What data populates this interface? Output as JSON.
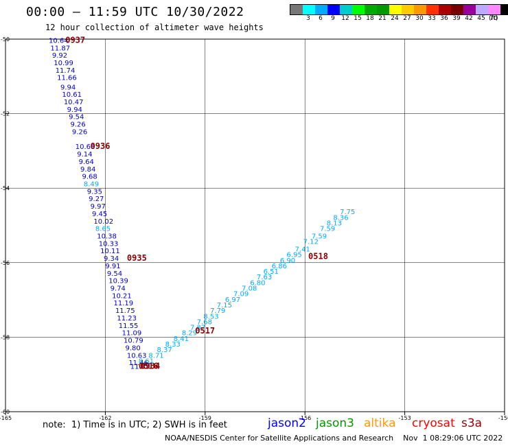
{
  "header": {
    "title": "00:00 – 11:59 UTC 10/30/2022",
    "subtitle": "12 hour collection of altimeter wave heights"
  },
  "colorbar": {
    "colors": [
      "#777777",
      "#00ffff",
      "#00aaff",
      "#0000ff",
      "#00cccc",
      "#00ff00",
      "#00aa00",
      "#009900",
      "#ffff00",
      "#ffcc00",
      "#ff9900",
      "#ff3300",
      "#aa0000",
      "#770000",
      "#990099",
      "#bbaaff",
      "#ff88ff",
      "#000000"
    ],
    "labels": [
      "",
      "3",
      "6",
      "9",
      "12",
      "15",
      "18",
      "21",
      "24",
      "27",
      "30",
      "33",
      "36",
      "39",
      "42",
      "45",
      "70",
      ""
    ],
    "unit": "(ft)"
  },
  "footer": {
    "note": "note:  1) Time is in UTC; 2) SWH is in feet",
    "satellites": [
      {
        "name": "jason2",
        "color": "#0000ff"
      },
      {
        "name": "jason3",
        "color": "#009900"
      },
      {
        "name": "altika",
        "color": "#ff9900"
      },
      {
        "name": "cryosat",
        "color": "#ff0000"
      },
      {
        "name": "s3a",
        "color": "#990000"
      }
    ],
    "credit": "NOAA/NESDIS Center for Satellite Applications and Research    Nov  1 08:29:06 UTC 2022"
  },
  "chart_data": {
    "type": "scatter",
    "xlim": [
      -165,
      -150
    ],
    "ylim": [
      -60,
      -50
    ],
    "xticks": [
      -165,
      -162,
      -159,
      -156,
      -153,
      -150
    ],
    "yticks": [
      -50,
      -52,
      -54,
      -56,
      -58,
      -60
    ],
    "grid": true,
    "series": [
      {
        "name": "pass 1",
        "color_low": "#0000cc",
        "color_high": "#00aaff",
        "points": [
          {
            "lon": -163.7,
            "lat": -50.1,
            "swh": "10.64"
          },
          {
            "lon": -163.65,
            "lat": -50.3,
            "swh": "11.87"
          },
          {
            "lon": -163.6,
            "lat": -50.5,
            "swh": "9.92"
          },
          {
            "lon": -163.55,
            "lat": -50.7,
            "swh": "10.99"
          },
          {
            "lon": -163.5,
            "lat": -50.9,
            "swh": "11.74"
          },
          {
            "lon": -163.45,
            "lat": -51.1,
            "swh": "11.66"
          },
          {
            "lon": -163.35,
            "lat": -51.35,
            "swh": "9.94"
          },
          {
            "lon": -163.3,
            "lat": -51.55,
            "swh": "10.61"
          },
          {
            "lon": -163.25,
            "lat": -51.75,
            "swh": "10.47"
          },
          {
            "lon": -163.15,
            "lat": -51.95,
            "swh": "9.94"
          },
          {
            "lon": -163.1,
            "lat": -52.15,
            "swh": "9.54"
          },
          {
            "lon": -163.05,
            "lat": -52.35,
            "swh": "9.26"
          },
          {
            "lon": -163.0,
            "lat": -52.55,
            "swh": "9.26"
          },
          {
            "lon": -162.9,
            "lat": -52.95,
            "swh": "10.68"
          },
          {
            "lon": -162.85,
            "lat": -53.15,
            "swh": "9.14"
          },
          {
            "lon": -162.8,
            "lat": -53.35,
            "swh": "9.64"
          },
          {
            "lon": -162.75,
            "lat": -53.55,
            "swh": "9.84"
          },
          {
            "lon": -162.7,
            "lat": -53.75,
            "swh": "9.68"
          },
          {
            "lon": -162.65,
            "lat": -53.95,
            "swh": "8.49"
          },
          {
            "lon": -162.55,
            "lat": -54.15,
            "swh": "9.35"
          },
          {
            "lon": -162.5,
            "lat": -54.35,
            "swh": "9.27"
          },
          {
            "lon": -162.45,
            "lat": -54.55,
            "swh": "9.97"
          },
          {
            "lon": -162.4,
            "lat": -54.75,
            "swh": "9.45"
          },
          {
            "lon": -162.35,
            "lat": -54.95,
            "swh": "10.02"
          },
          {
            "lon": -162.3,
            "lat": -55.15,
            "swh": "8.65"
          },
          {
            "lon": -162.25,
            "lat": -55.35,
            "swh": "10.38"
          },
          {
            "lon": -162.2,
            "lat": -55.55,
            "swh": "10.33"
          },
          {
            "lon": -162.15,
            "lat": -55.75,
            "swh": "10.11"
          },
          {
            "lon": -162.05,
            "lat": -55.95,
            "swh": "9.34"
          },
          {
            "lon": -162.0,
            "lat": -56.15,
            "swh": "9.91"
          },
          {
            "lon": -161.95,
            "lat": -56.35,
            "swh": "9.54"
          },
          {
            "lon": -161.9,
            "lat": -56.55,
            "swh": "10.39"
          },
          {
            "lon": -161.85,
            "lat": -56.75,
            "swh": "9.74"
          },
          {
            "lon": -161.8,
            "lat": -56.95,
            "swh": "10.21"
          },
          {
            "lon": -161.75,
            "lat": -57.15,
            "swh": "11.19"
          },
          {
            "lon": -161.7,
            "lat": -57.35,
            "swh": "11.75"
          },
          {
            "lon": -161.65,
            "lat": -57.55,
            "swh": "11.23"
          },
          {
            "lon": -161.6,
            "lat": -57.75,
            "swh": "11.55"
          },
          {
            "lon": -161.5,
            "lat": -57.95,
            "swh": "11.09"
          },
          {
            "lon": -161.45,
            "lat": -58.15,
            "swh": "10.79"
          },
          {
            "lon": -161.4,
            "lat": -58.35,
            "swh": "9.80"
          },
          {
            "lon": -161.35,
            "lat": -58.55,
            "swh": "10.63"
          },
          {
            "lon": -161.3,
            "lat": -58.75,
            "swh": "11.46"
          },
          {
            "lon": -161.25,
            "lat": -58.85,
            "swh": "11.35"
          }
        ],
        "time_labels": [
          {
            "lon": -163.2,
            "lat": -50.1,
            "text": "0937"
          },
          {
            "lon": -162.45,
            "lat": -52.95,
            "text": "0936"
          },
          {
            "lon": -161.35,
            "lat": -55.95,
            "text": "0935"
          },
          {
            "lon": -160.95,
            "lat": -58.85,
            "text": "0934"
          }
        ]
      },
      {
        "name": "pass 2",
        "color_low": "#00aaff",
        "color_high": "#00aaff",
        "points": [
          {
            "lon": -161.0,
            "lat": -58.7,
            "swh": "8.61"
          },
          {
            "lon": -160.7,
            "lat": -58.55,
            "swh": "8.71"
          },
          {
            "lon": -160.45,
            "lat": -58.4,
            "swh": "8.37"
          },
          {
            "lon": -160.2,
            "lat": -58.25,
            "swh": "8.33"
          },
          {
            "lon": -159.95,
            "lat": -58.1,
            "swh": "8.41"
          },
          {
            "lon": -159.7,
            "lat": -57.95,
            "swh": "8.29"
          },
          {
            "lon": -159.45,
            "lat": -57.8,
            "swh": "7.87"
          },
          {
            "lon": -159.25,
            "lat": -57.65,
            "swh": "7.68"
          },
          {
            "lon": -159.05,
            "lat": -57.5,
            "swh": "8.53"
          },
          {
            "lon": -158.85,
            "lat": -57.35,
            "swh": "7.79"
          },
          {
            "lon": -158.65,
            "lat": -57.2,
            "swh": "7.15"
          },
          {
            "lon": -158.4,
            "lat": -57.05,
            "swh": "6.97"
          },
          {
            "lon": -158.15,
            "lat": -56.9,
            "swh": "7.09"
          },
          {
            "lon": -157.9,
            "lat": -56.75,
            "swh": "7.08"
          },
          {
            "lon": -157.65,
            "lat": -56.6,
            "swh": "6.80"
          },
          {
            "lon": -157.45,
            "lat": -56.45,
            "swh": "7.63"
          },
          {
            "lon": -157.25,
            "lat": -56.3,
            "swh": "6.51"
          },
          {
            "lon": -157.0,
            "lat": -56.15,
            "swh": "6.86"
          },
          {
            "lon": -156.75,
            "lat": -56.0,
            "swh": "6.90"
          },
          {
            "lon": -156.55,
            "lat": -55.85,
            "swh": "6.95"
          },
          {
            "lon": -156.3,
            "lat": -55.7,
            "swh": "7.41"
          },
          {
            "lon": -156.05,
            "lat": -55.5,
            "swh": "7.12"
          },
          {
            "lon": -155.8,
            "lat": -55.35,
            "swh": "7.59"
          },
          {
            "lon": -155.55,
            "lat": -55.15,
            "swh": "7.59"
          },
          {
            "lon": -155.35,
            "lat": -55.0,
            "swh": "8.13"
          },
          {
            "lon": -155.15,
            "lat": -54.85,
            "swh": "8.36"
          },
          {
            "lon": -154.95,
            "lat": -54.7,
            "swh": "7.75"
          }
        ],
        "time_labels": [
          {
            "lon": -161.0,
            "lat": -58.85,
            "text": "0516"
          },
          {
            "lon": -159.3,
            "lat": -57.9,
            "text": "0517"
          },
          {
            "lon": -155.9,
            "lat": -55.9,
            "text": "0518"
          }
        ]
      }
    ]
  }
}
